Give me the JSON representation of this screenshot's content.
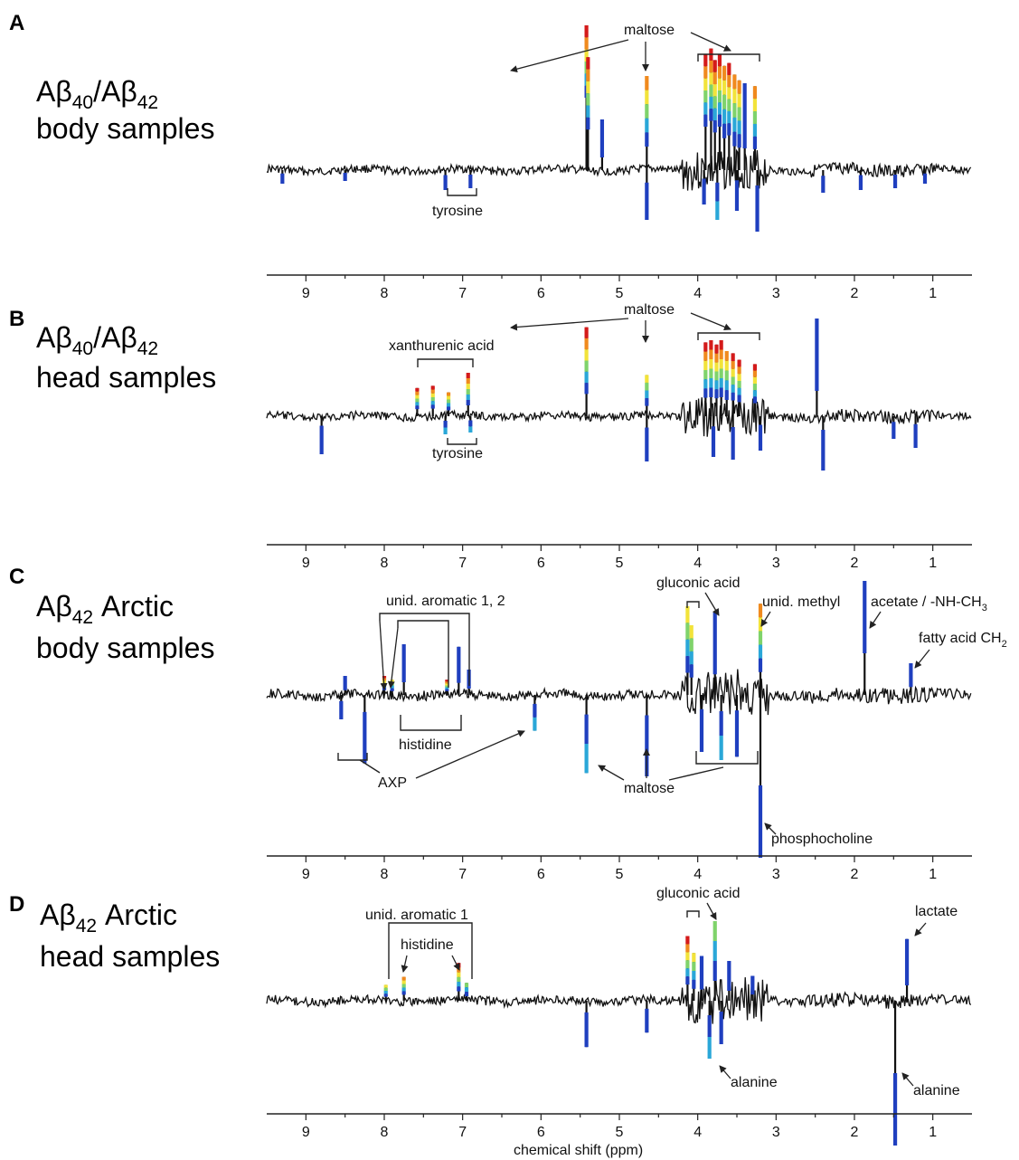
{
  "figure": {
    "xlabel": "chemical shift (ppm)",
    "colors": {
      "baseline": "#111111",
      "peak_scale": [
        "#1f3fbf",
        "#2aa7d8",
        "#7fd36b",
        "#f2e33a",
        "#f08a1e",
        "#d41a1a"
      ]
    }
  },
  "chart_data": [
    {
      "type": "line",
      "panel": "A",
      "label": {
        "prefix": "Aβ",
        "sub1": "40",
        "mid": "/Aβ",
        "sub2": "42",
        "line2": "body samples"
      },
      "x_ticks": [
        "9",
        "8",
        "7",
        "6",
        "5",
        "4",
        "3",
        "2",
        "1"
      ],
      "xlim": [
        9.5,
        0.5
      ],
      "xlabel": "",
      "annotations": [
        {
          "text": "maltose"
        },
        {
          "text": "tyrosine"
        }
      ],
      "peaks": [
        {
          "ppm": 5.42,
          "v": 1.0,
          "c": 5
        },
        {
          "ppm": 5.4,
          "v": 0.78,
          "c": 5
        },
        {
          "ppm": 5.22,
          "v": 0.35,
          "c": 0
        },
        {
          "ppm": 4.65,
          "v": 0.65,
          "c": 4
        },
        {
          "ppm": 4.65,
          "v": -0.55,
          "c": 0
        },
        {
          "ppm": 3.9,
          "v": 0.8,
          "c": 5
        },
        {
          "ppm": 3.83,
          "v": 0.84,
          "c": 5
        },
        {
          "ppm": 3.78,
          "v": 0.76,
          "c": 5
        },
        {
          "ppm": 3.72,
          "v": 0.8,
          "c": 5
        },
        {
          "ppm": 3.66,
          "v": 0.72,
          "c": 4
        },
        {
          "ppm": 3.6,
          "v": 0.74,
          "c": 5
        },
        {
          "ppm": 3.53,
          "v": 0.66,
          "c": 4
        },
        {
          "ppm": 3.47,
          "v": 0.62,
          "c": 4
        },
        {
          "ppm": 3.4,
          "v": 0.6,
          "c": 0
        },
        {
          "ppm": 3.27,
          "v": 0.58,
          "c": 4
        },
        {
          "ppm": 3.92,
          "v": -0.38,
          "c": 0
        },
        {
          "ppm": 3.75,
          "v": -0.55,
          "c": 1
        },
        {
          "ppm": 3.5,
          "v": -0.45,
          "c": 0
        },
        {
          "ppm": 3.24,
          "v": -0.68,
          "c": 0
        },
        {
          "ppm": 7.22,
          "v": -0.22,
          "c": 0
        },
        {
          "ppm": 6.9,
          "v": -0.2,
          "c": 0
        },
        {
          "ppm": 9.3,
          "v": -0.15,
          "c": 0
        },
        {
          "ppm": 8.5,
          "v": -0.12,
          "c": 0
        },
        {
          "ppm": 2.4,
          "v": -0.25,
          "c": 0
        },
        {
          "ppm": 1.92,
          "v": -0.22,
          "c": 0
        },
        {
          "ppm": 1.48,
          "v": -0.2,
          "c": 0
        },
        {
          "ppm": 1.1,
          "v": -0.15,
          "c": 0
        }
      ]
    },
    {
      "type": "line",
      "panel": "B",
      "label": {
        "prefix": "Aβ",
        "sub1": "40",
        "mid": "/Aβ",
        "sub2": "42",
        "line2": "head samples"
      },
      "x_ticks": [
        "9",
        "8",
        "7",
        "6",
        "5",
        "4",
        "3",
        "2",
        "1"
      ],
      "xlim": [
        9.5,
        0.5
      ],
      "xlabel": "",
      "annotations": [
        {
          "text": "maltose"
        },
        {
          "text": "xanthurenic acid"
        },
        {
          "text": "tyrosine"
        }
      ],
      "peaks": [
        {
          "ppm": 7.58,
          "v": 0.26,
          "c": 5
        },
        {
          "ppm": 7.38,
          "v": 0.28,
          "c": 5
        },
        {
          "ppm": 7.18,
          "v": 0.22,
          "c": 4
        },
        {
          "ppm": 6.93,
          "v": 0.4,
          "c": 5
        },
        {
          "ppm": 5.42,
          "v": 0.82,
          "c": 5
        },
        {
          "ppm": 4.65,
          "v": 0.38,
          "c": 3
        },
        {
          "ppm": 4.65,
          "v": -0.5,
          "c": 0
        },
        {
          "ppm": 3.9,
          "v": 0.68,
          "c": 5
        },
        {
          "ppm": 3.83,
          "v": 0.7,
          "c": 5
        },
        {
          "ppm": 3.76,
          "v": 0.66,
          "c": 5
        },
        {
          "ppm": 3.7,
          "v": 0.7,
          "c": 5
        },
        {
          "ppm": 3.63,
          "v": 0.6,
          "c": 4
        },
        {
          "ppm": 3.55,
          "v": 0.58,
          "c": 5
        },
        {
          "ppm": 3.47,
          "v": 0.52,
          "c": 5
        },
        {
          "ppm": 3.27,
          "v": 0.48,
          "c": 5
        },
        {
          "ppm": 2.48,
          "v": 0.9,
          "c": 0
        },
        {
          "ppm": 3.8,
          "v": -0.45,
          "c": 0
        },
        {
          "ppm": 3.55,
          "v": -0.48,
          "c": 0
        },
        {
          "ppm": 3.2,
          "v": -0.38,
          "c": 0
        },
        {
          "ppm": 8.8,
          "v": -0.42,
          "c": 0
        },
        {
          "ppm": 7.22,
          "v": -0.2,
          "c": 1
        },
        {
          "ppm": 6.9,
          "v": -0.18,
          "c": 1
        },
        {
          "ppm": 2.4,
          "v": -0.6,
          "c": 0
        },
        {
          "ppm": 1.5,
          "v": -0.25,
          "c": 0
        },
        {
          "ppm": 1.22,
          "v": -0.35,
          "c": 0
        }
      ]
    },
    {
      "type": "line",
      "panel": "C",
      "label": {
        "prefix": "Aβ",
        "sub1": "42",
        "mid": " Arctic",
        "sub2": "",
        "line2": "body samples"
      },
      "x_ticks": [
        "9",
        "8",
        "7",
        "6",
        "5",
        "4",
        "3",
        "2",
        "1"
      ],
      "xlim": [
        9.5,
        0.5
      ],
      "xlabel": "",
      "annotations": [
        {
          "text": "unid. aromatic 1, 2"
        },
        {
          "text": "gluconic acid"
        },
        {
          "text": "unid. methyl"
        },
        {
          "text": "acetate / -NH-CH",
          "sub": "3"
        },
        {
          "text": "fatty acid CH",
          "sub": "2"
        },
        {
          "text": "histidine"
        },
        {
          "text": "AXP"
        },
        {
          "text": "maltose"
        },
        {
          "text": "phosphocholine"
        }
      ],
      "peaks": [
        {
          "ppm": 7.75,
          "v": 0.4,
          "c": 0
        },
        {
          "ppm": 7.9,
          "v": 0.12,
          "c": 3
        },
        {
          "ppm": 8.0,
          "v": 0.15,
          "c": 5
        },
        {
          "ppm": 7.2,
          "v": 0.12,
          "c": 5
        },
        {
          "ppm": 7.05,
          "v": 0.38,
          "c": 0
        },
        {
          "ppm": 6.92,
          "v": 0.2,
          "c": 0
        },
        {
          "ppm": 8.5,
          "v": 0.15,
          "c": 0
        },
        {
          "ppm": 8.25,
          "v": -0.42,
          "c": 0
        },
        {
          "ppm": 8.55,
          "v": -0.15,
          "c": 0
        },
        {
          "ppm": 6.08,
          "v": -0.22,
          "c": 1
        },
        {
          "ppm": 5.42,
          "v": -0.48,
          "c": 1
        },
        {
          "ppm": 4.65,
          "v": -0.5,
          "c": 0
        },
        {
          "ppm": 4.13,
          "v": 0.7,
          "c": 3
        },
        {
          "ppm": 4.08,
          "v": 0.55,
          "c": 3
        },
        {
          "ppm": 3.78,
          "v": 0.65,
          "c": 0
        },
        {
          "ppm": 3.2,
          "v": 0.72,
          "c": 4
        },
        {
          "ppm": 1.87,
          "v": 0.9,
          "c": 0
        },
        {
          "ppm": 1.28,
          "v": 0.25,
          "c": 0
        },
        {
          "ppm": 3.95,
          "v": -0.35,
          "c": 0
        },
        {
          "ppm": 3.7,
          "v": -0.4,
          "c": 1
        },
        {
          "ppm": 3.5,
          "v": -0.38,
          "c": 0
        },
        {
          "ppm": 3.2,
          "v": -1.0,
          "c": 0
        }
      ]
    },
    {
      "type": "line",
      "panel": "D",
      "label": {
        "prefix": "Aβ",
        "sub1": "42",
        "mid": " Arctic",
        "sub2": "",
        "line2": "head samples"
      },
      "x_ticks": [
        "9",
        "8",
        "7",
        "6",
        "5",
        "4",
        "3",
        "2",
        "1"
      ],
      "xlim": [
        9.5,
        0.5
      ],
      "xlabel": "chemical shift (ppm)",
      "annotations": [
        {
          "text": "gluconic acid"
        },
        {
          "text": "unid. aromatic 1"
        },
        {
          "text": "histidine"
        },
        {
          "text": "lactate"
        },
        {
          "text": "alanine"
        },
        {
          "text": "alanine"
        }
      ],
      "peaks": [
        {
          "ppm": 7.98,
          "v": 0.16,
          "c": 3
        },
        {
          "ppm": 7.75,
          "v": 0.24,
          "c": 4
        },
        {
          "ppm": 7.05,
          "v": 0.38,
          "c": 5
        },
        {
          "ppm": 6.95,
          "v": 0.18,
          "c": 2
        },
        {
          "ppm": 4.13,
          "v": 0.65,
          "c": 5
        },
        {
          "ppm": 4.05,
          "v": 0.48,
          "c": 3
        },
        {
          "ppm": 3.78,
          "v": 0.8,
          "c": 2
        },
        {
          "ppm": 3.95,
          "v": 0.45,
          "c": 0
        },
        {
          "ppm": 3.6,
          "v": 0.4,
          "c": 0
        },
        {
          "ppm": 3.3,
          "v": 0.25,
          "c": 0
        },
        {
          "ppm": 1.33,
          "v": 0.62,
          "c": 0
        },
        {
          "ppm": 3.85,
          "v": -0.4,
          "c": 1
        },
        {
          "ppm": 3.7,
          "v": -0.3,
          "c": 0
        },
        {
          "ppm": 5.42,
          "v": -0.32,
          "c": 0
        },
        {
          "ppm": 4.65,
          "v": -0.22,
          "c": 0
        },
        {
          "ppm": 1.48,
          "v": -1.0,
          "c": 0
        }
      ]
    }
  ]
}
